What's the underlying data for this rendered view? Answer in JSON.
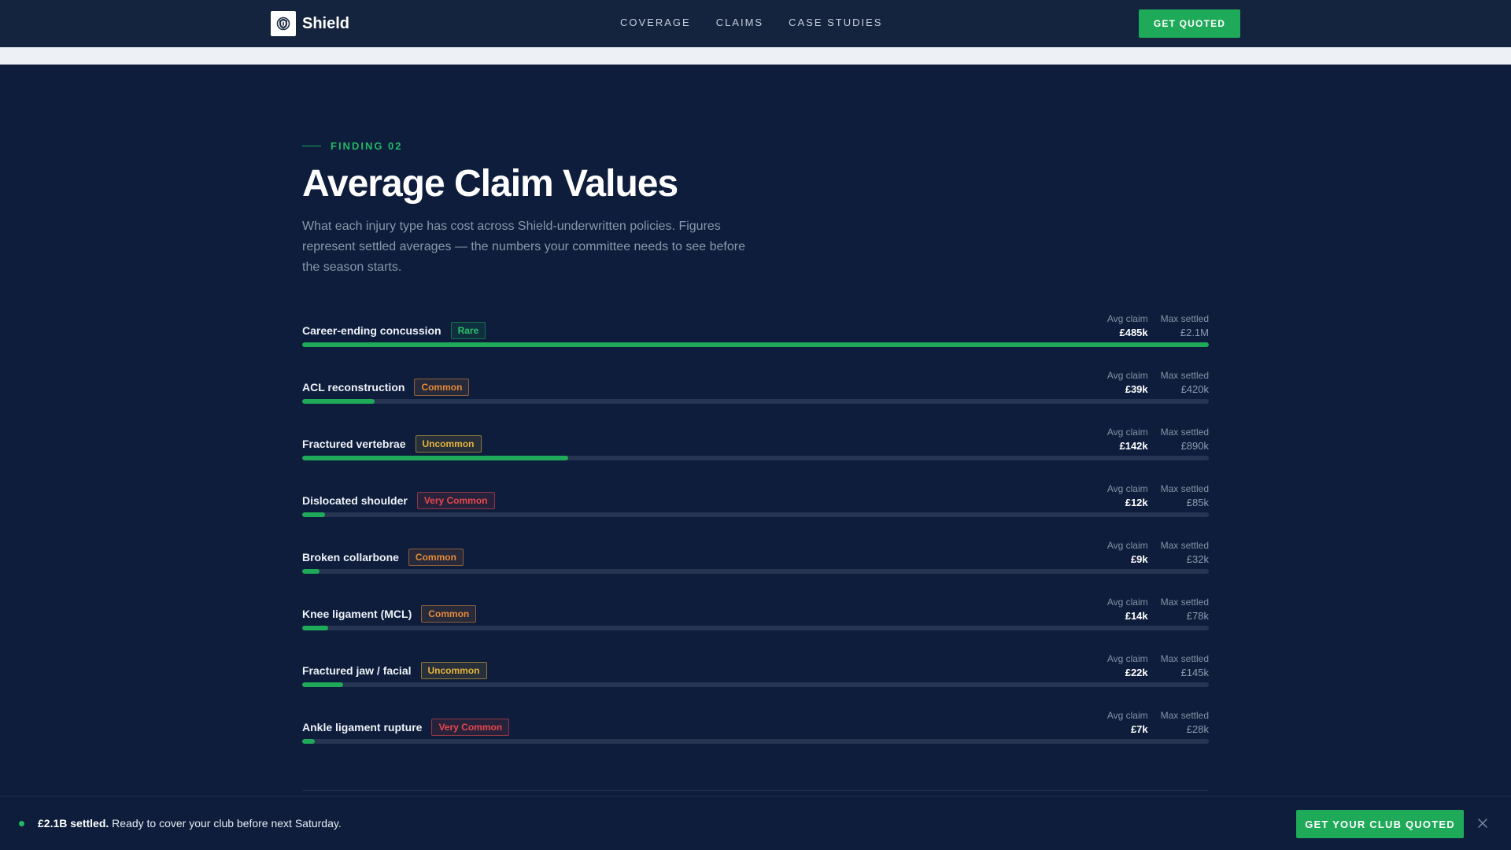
{
  "nav": {
    "brand": "Shield",
    "logo_icon": "shield-crest-icon",
    "links": [
      "COVERAGE",
      "CLAIMS",
      "CASE STUDIES"
    ],
    "cta": "GET QUOTED"
  },
  "section": {
    "eyebrow": "FINDING 02",
    "title": "Average Claim Values",
    "description": "What each injury type has cost across Shield-underwritten policies. Figures represent settled averages — the numbers your committee needs to see before the season starts.",
    "avg_label": "Avg claim",
    "max_label": "Max settled"
  },
  "chart_data": {
    "type": "bar",
    "categories": [
      "Career-ending concussion",
      "ACL reconstruction",
      "Fractured vertebrae",
      "Dislocated shoulder",
      "Broken collarbone",
      "Knee ligament (MCL)",
      "Fractured jaw / facial",
      "Ankle ligament rupture"
    ],
    "values": [
      485,
      39,
      142,
      12,
      9,
      14,
      22,
      7
    ],
    "ylim": [
      0,
      485
    ]
  },
  "claims": [
    {
      "name": "Career-ending concussion",
      "frequency": "Rare",
      "level": "rare",
      "avg": "£485k",
      "max": "£2.1M",
      "share": 1.0
    },
    {
      "name": "ACL reconstruction",
      "frequency": "Common",
      "level": "common",
      "avg": "£39k",
      "max": "£420k",
      "share": 0.08
    },
    {
      "name": "Fractured vertebrae",
      "frequency": "Uncommon",
      "level": "uncommon",
      "avg": "£142k",
      "max": "£890k",
      "share": 0.293
    },
    {
      "name": "Dislocated shoulder",
      "frequency": "Very Common",
      "level": "verycommon",
      "avg": "£12k",
      "max": "£85k",
      "share": 0.025
    },
    {
      "name": "Broken collarbone",
      "frequency": "Common",
      "level": "common",
      "avg": "£9k",
      "max": "£32k",
      "share": 0.019
    },
    {
      "name": "Knee ligament (MCL)",
      "frequency": "Common",
      "level": "common",
      "avg": "£14k",
      "max": "£78k",
      "share": 0.029
    },
    {
      "name": "Fractured jaw / facial",
      "frequency": "Uncommon",
      "level": "uncommon",
      "avg": "£22k",
      "max": "£145k",
      "share": 0.045
    },
    {
      "name": "Ankle ligament rupture",
      "frequency": "Very Common",
      "level": "verycommon",
      "avg": "£7k",
      "max": "£28k",
      "share": 0.014
    }
  ],
  "bottom_bar": {
    "highlight": "£2.1B settled.",
    "message": " Ready to cover your club before next Saturday.",
    "cta": "GET YOUR CLUB QUOTED",
    "close_icon": "close-icon"
  },
  "colors": {
    "accent": "#1faa59",
    "background": "#0d1d3b",
    "rare": "#2bc06b",
    "common": "#e68a3a",
    "uncommon": "#e6b43a",
    "very_common": "#e5484d"
  }
}
